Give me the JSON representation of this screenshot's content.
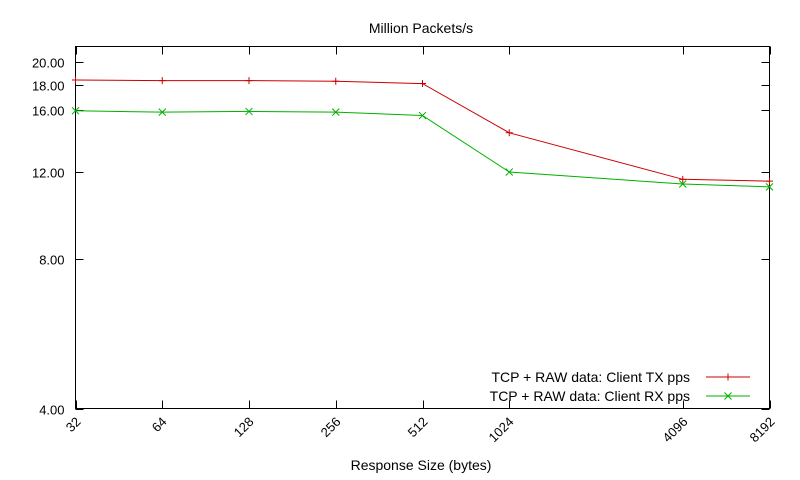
{
  "chart_data": {
    "type": "line",
    "title": "Million Packets/s",
    "xlabel": "Response Size (bytes)",
    "ylabel": "",
    "x_scale": "log2",
    "y_scale": "log",
    "x": [
      32,
      64,
      128,
      256,
      512,
      1024,
      4096,
      8192
    ],
    "x_tick_labels": [
      "32",
      "64",
      "128",
      "256",
      "512",
      "1024",
      "4096",
      "8192"
    ],
    "y_ticks": [
      4,
      8,
      12,
      16,
      18,
      20
    ],
    "y_tick_labels": [
      "4.00",
      "8.00",
      "12.00",
      "16.00",
      "18.00",
      "20.00"
    ],
    "xlim": [
      32,
      8192
    ],
    "ylim": [
      4,
      21.5
    ],
    "grid": false,
    "legend_position": "bottom-right",
    "series": [
      {
        "name": "TCP + RAW data: Client TX pps",
        "color": "#cc0000",
        "marker": "plus",
        "values": [
          18.4,
          18.35,
          18.35,
          18.3,
          18.1,
          14.4,
          11.6,
          11.5
        ]
      },
      {
        "name": "TCP + RAW data: Client RX pps",
        "color": "#00b000",
        "marker": "cross",
        "values": [
          15.95,
          15.85,
          15.9,
          15.85,
          15.6,
          12.0,
          11.35,
          11.2
        ]
      }
    ]
  }
}
